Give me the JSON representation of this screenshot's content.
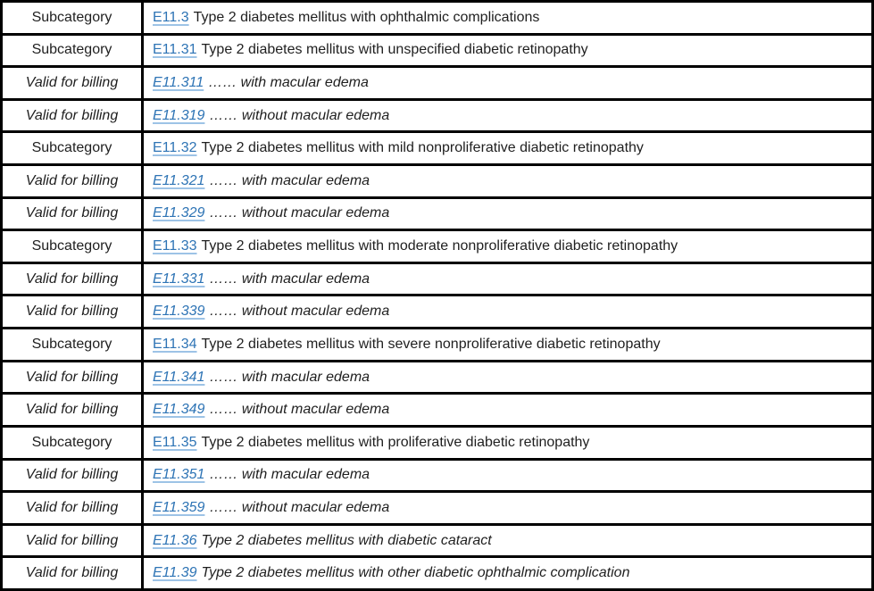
{
  "table": {
    "colors": {
      "link": "#2E74B5",
      "link_underline": "#9DC3E6",
      "border": "#000000",
      "text": "#1F1F1F",
      "background": "#FFFFFF"
    },
    "rows": [
      {
        "status": "Subcategory",
        "code": "E11.3",
        "description": "Type 2 diabetes mellitus with ophthalmic complications",
        "billable": false
      },
      {
        "status": "Subcategory",
        "code": "E11.31",
        "description": "Type 2 diabetes mellitus with unspecified diabetic retinopathy",
        "billable": false
      },
      {
        "status": "Valid for billing",
        "code": "E11.311",
        "description": "…… with macular edema",
        "billable": true
      },
      {
        "status": "Valid for billing",
        "code": "E11.319",
        "description": "…… without macular edema",
        "billable": true
      },
      {
        "status": "Subcategory",
        "code": "E11.32",
        "description": "Type 2 diabetes mellitus with mild nonproliferative diabetic retinopathy",
        "billable": false
      },
      {
        "status": "Valid for billing",
        "code": "E11.321",
        "description": "…… with macular edema",
        "billable": true
      },
      {
        "status": "Valid for billing",
        "code": "E11.329",
        "description": "…… without macular edema",
        "billable": true
      },
      {
        "status": "Subcategory",
        "code": "E11.33",
        "description": "Type 2 diabetes mellitus with moderate nonproliferative diabetic retinopathy",
        "billable": false
      },
      {
        "status": "Valid for billing",
        "code": "E11.331",
        "description": "…… with macular edema",
        "billable": true
      },
      {
        "status": "Valid for billing",
        "code": "E11.339",
        "description": "…… without macular edema",
        "billable": true
      },
      {
        "status": "Subcategory",
        "code": "E11.34",
        "description": "Type 2 diabetes mellitus with severe nonproliferative diabetic retinopathy",
        "billable": false
      },
      {
        "status": "Valid for billing",
        "code": "E11.341",
        "description": "…… with macular edema",
        "billable": true
      },
      {
        "status": "Valid for billing",
        "code": "E11.349",
        "description": "…… without macular edema",
        "billable": true
      },
      {
        "status": "Subcategory",
        "code": "E11.35",
        "description": "Type 2 diabetes mellitus with proliferative diabetic retinopathy",
        "billable": false
      },
      {
        "status": "Valid for billing",
        "code": "E11.351",
        "description": "…… with macular edema",
        "billable": true
      },
      {
        "status": "Valid for billing",
        "code": "E11.359",
        "description": "…… without macular edema",
        "billable": true
      },
      {
        "status": "Valid for billing",
        "code": "E11.36",
        "description": "Type 2 diabetes mellitus with diabetic cataract",
        "billable": true
      },
      {
        "status": "Valid for billing",
        "code": "E11.39",
        "description": "Type 2 diabetes mellitus with other diabetic ophthalmic complication",
        "billable": true
      }
    ]
  }
}
